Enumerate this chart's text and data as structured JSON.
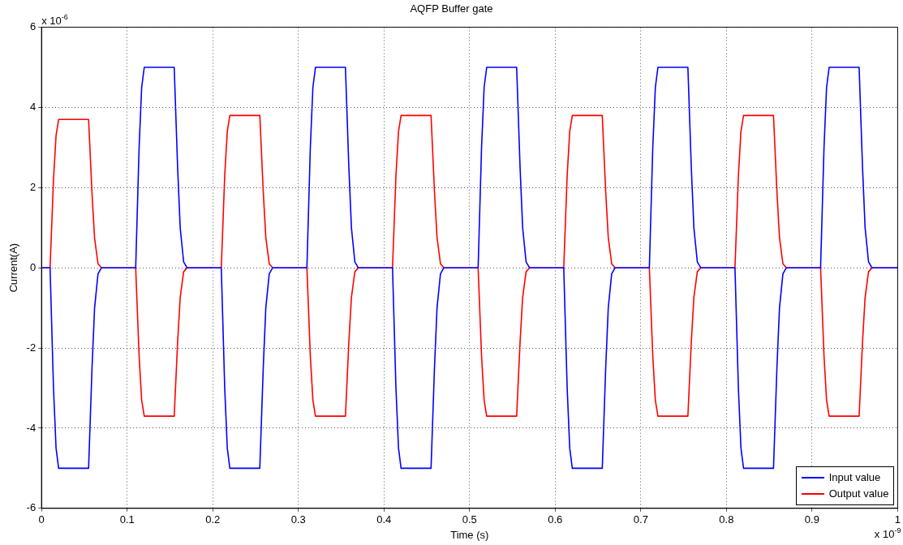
{
  "chart_data": {
    "type": "line",
    "title": "AQFP Buffer gate",
    "xlabel": "Time (s)",
    "ylabel": "Current(A)",
    "annotations": [
      "x 10$^{-6}$",
      "x 10$^{-9}$"
    ],
    "x": [
      0,
      0.01,
      0.014,
      0.017,
      0.02,
      0.055,
      0.059,
      0.062,
      0.066,
      0.07,
      0.11,
      0.114,
      0.117,
      0.12,
      0.155,
      0.159,
      0.162,
      0.166,
      0.17,
      0.21,
      0.214,
      0.217,
      0.22,
      0.255,
      0.259,
      0.262,
      0.266,
      0.27,
      0.31,
      0.314,
      0.317,
      0.32,
      0.355,
      0.359,
      0.362,
      0.366,
      0.37,
      0.41,
      0.414,
      0.417,
      0.42,
      0.455,
      0.459,
      0.462,
      0.466,
      0.47,
      0.51,
      0.514,
      0.517,
      0.52,
      0.555,
      0.559,
      0.562,
      0.566,
      0.57,
      0.61,
      0.614,
      0.617,
      0.62,
      0.655,
      0.659,
      0.662,
      0.666,
      0.67,
      0.71,
      0.714,
      0.717,
      0.72,
      0.755,
      0.759,
      0.762,
      0.766,
      0.77,
      0.81,
      0.814,
      0.817,
      0.82,
      0.855,
      0.859,
      0.862,
      0.866,
      0.87,
      0.91,
      0.914,
      0.917,
      0.92,
      0.955,
      0.959,
      0.962,
      0.966,
      0.97,
      1
    ],
    "series": [
      {
        "name": "Input value",
        "color": "#0000ff",
        "values": [
          0,
          0,
          -3,
          -4.5,
          -5,
          -5,
          -2.5,
          -1,
          -0.15,
          0,
          0,
          3,
          4.5,
          5,
          5,
          2.5,
          1,
          0.15,
          0,
          0,
          -3,
          -4.5,
          -5,
          -5,
          -2.5,
          -1,
          -0.15,
          0,
          0,
          3,
          4.5,
          5,
          5,
          2.5,
          1,
          0.15,
          0,
          0,
          -3,
          -4.5,
          -5,
          -5,
          -2.5,
          -1,
          -0.15,
          0,
          0,
          3,
          4.5,
          5,
          5,
          2.5,
          1,
          0.15,
          0,
          0,
          -3,
          -4.5,
          -5,
          -5,
          -2.5,
          -1,
          -0.15,
          0,
          0,
          3,
          4.5,
          5,
          5,
          2.5,
          1,
          0.15,
          0,
          0,
          -3,
          -4.5,
          -5,
          -5,
          -2.5,
          -1,
          -0.15,
          0,
          0,
          3,
          4.5,
          5,
          5,
          2.5,
          1,
          0.15,
          0,
          0
        ]
      },
      {
        "name": "Output value",
        "color": "#ff0000",
        "values": [
          0,
          0,
          2.2,
          3.3,
          3.7,
          3.7,
          1.85,
          0.74,
          0.1,
          0,
          0,
          -2.2,
          -3.3,
          -3.7,
          -3.7,
          -1.85,
          -0.74,
          -0.1,
          0,
          0,
          2.3,
          3.4,
          3.8,
          3.8,
          1.9,
          0.76,
          0.1,
          0,
          0,
          -2.2,
          -3.3,
          -3.7,
          -3.7,
          -1.85,
          -0.74,
          -0.1,
          0,
          0,
          2.3,
          3.4,
          3.8,
          3.8,
          1.9,
          0.76,
          0.1,
          0,
          0,
          -2.2,
          -3.3,
          -3.7,
          -3.7,
          -1.85,
          -0.74,
          -0.1,
          0,
          0,
          2.3,
          3.4,
          3.8,
          3.8,
          1.9,
          0.76,
          0.1,
          0,
          0,
          -2.2,
          -3.3,
          -3.7,
          -3.7,
          -1.85,
          -0.74,
          -0.1,
          0,
          0,
          2.3,
          3.4,
          3.8,
          3.8,
          1.9,
          0.76,
          0.1,
          0,
          0,
          -2.2,
          -3.3,
          -3.7,
          -3.7,
          -1.85,
          -0.74,
          -0.1,
          0,
          0
        ]
      }
    ],
    "xlim": [
      0,
      1
    ],
    "xticks": [
      0,
      0.1,
      0.2,
      0.3,
      0.4,
      0.5,
      0.6,
      0.7,
      0.8,
      0.9,
      1
    ],
    "ylim": [
      -6,
      6
    ],
    "yticks": [
      -6,
      -4,
      -2,
      0,
      2,
      4,
      6
    ],
    "grid": true,
    "legend": "bottom right",
    "marker": "none",
    "line_style": "solid"
  }
}
